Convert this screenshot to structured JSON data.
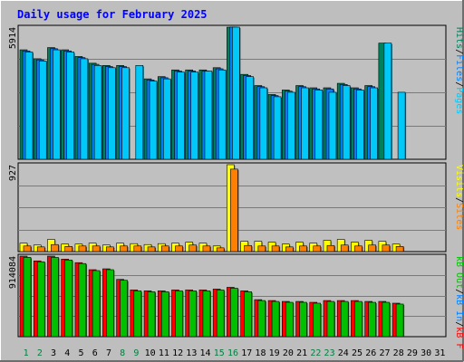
{
  "chart_data": [
    {
      "type": "bar",
      "title": "Daily usage for February 2025",
      "panel": "hits-files-pages",
      "max_label": "5914",
      "ylim": [
        0,
        5914
      ],
      "grid": true,
      "legend": {
        "placement": "right-vertical",
        "separator": "/",
        "entries": [
          {
            "label": "Pages",
            "color": "#00c8f8"
          },
          {
            "label": "Files",
            "color": "#0080ff"
          },
          {
            "label": "Hits",
            "color": "#00805c"
          }
        ]
      },
      "categories": [
        "1",
        "2",
        "3",
        "4",
        "5",
        "6",
        "7",
        "8",
        "9",
        "10",
        "11",
        "12",
        "13",
        "14",
        "15",
        "16",
        "17",
        "18",
        "19",
        "20",
        "21",
        "22",
        "23",
        "24",
        "25",
        "26",
        "27",
        "28",
        "29",
        "30",
        "31"
      ],
      "weekend_days": [
        "1",
        "2",
        "8",
        "9",
        "15",
        "16",
        "22",
        "23"
      ],
      "series": [
        {
          "name": "Hits",
          "color": "#00805c",
          "values": [
            4900,
            4500,
            5000,
            4900,
            4600,
            4300,
            4200,
            4200,
            null,
            3600,
            3700,
            4000,
            4000,
            4000,
            4100,
            5914,
            3800,
            3300,
            2900,
            3100,
            3300,
            3200,
            3200,
            3400,
            3200,
            3300,
            5200,
            null,
            null,
            null,
            null
          ]
        },
        {
          "name": "Files",
          "color": "#0080ff",
          "values": [
            4850,
            4450,
            4950,
            4850,
            4550,
            4250,
            4150,
            4150,
            null,
            3550,
            3650,
            3950,
            3950,
            3950,
            4050,
            5914,
            3750,
            3250,
            2850,
            3050,
            3250,
            3150,
            3150,
            3350,
            3150,
            3250,
            null,
            null,
            null,
            null,
            null
          ]
        },
        {
          "name": "Pages",
          "color": "#00c8f8",
          "values": [
            4800,
            4400,
            4900,
            4800,
            4500,
            4200,
            4100,
            4100,
            4200,
            3500,
            3600,
            3900,
            3900,
            3950,
            4000,
            5914,
            3700,
            3200,
            2800,
            3000,
            3200,
            3100,
            3000,
            3300,
            3100,
            3200,
            5200,
            3000,
            null,
            null,
            null
          ]
        }
      ]
    },
    {
      "type": "bar",
      "panel": "visits-sites",
      "max_label": "927",
      "ylim": [
        0,
        927
      ],
      "grid": true,
      "legend": {
        "placement": "right-vertical",
        "separator": "/",
        "entries": [
          {
            "label": "Sites",
            "color": "#ff8000"
          },
          {
            "label": "Visits",
            "color": "#ffff00"
          }
        ]
      },
      "series": [
        {
          "name": "Visits",
          "color": "#ffff00",
          "values": [
            90,
            70,
            130,
            80,
            80,
            90,
            70,
            90,
            85,
            75,
            85,
            90,
            100,
            90,
            60,
            927,
            110,
            110,
            100,
            80,
            100,
            90,
            120,
            130,
            100,
            120,
            110,
            80,
            null,
            null,
            null
          ]
        },
        {
          "name": "Sites",
          "color": "#ff8000",
          "values": [
            60,
            50,
            75,
            55,
            60,
            60,
            50,
            60,
            60,
            50,
            60,
            60,
            70,
            60,
            40,
            880,
            65,
            60,
            60,
            50,
            60,
            60,
            65,
            70,
            60,
            70,
            70,
            55,
            null,
            null,
            null
          ]
        }
      ]
    },
    {
      "type": "bar",
      "panel": "kbytes",
      "max_label": "914084",
      "ylim": [
        0,
        914084
      ],
      "grid": true,
      "legend": {
        "placement": "right-vertical",
        "separator": "/",
        "entries": [
          {
            "label": "kB F",
            "color": "#ff0000"
          },
          {
            "label": "kB In",
            "color": "#0080ff"
          },
          {
            "label": "kB Out",
            "color": "#00c000"
          }
        ]
      },
      "series": [
        {
          "name": "kB F",
          "color": "#ff0000",
          "values": [
            914084,
            860000,
            914084,
            880000,
            840000,
            760000,
            770000,
            650000,
            530000,
            520000,
            520000,
            530000,
            530000,
            530000,
            540000,
            560000,
            520000,
            420000,
            410000,
            400000,
            400000,
            390000,
            410000,
            410000,
            410000,
            400000,
            400000,
            380000,
            null,
            null,
            null
          ]
        },
        {
          "name": "kB Out",
          "color": "#00c000",
          "values": [
            900000,
            850000,
            900000,
            870000,
            830000,
            750000,
            760000,
            640000,
            520000,
            510000,
            510000,
            520000,
            520000,
            520000,
            530000,
            550000,
            510000,
            410000,
            400000,
            390000,
            390000,
            380000,
            400000,
            400000,
            400000,
            390000,
            390000,
            370000,
            null,
            null,
            null
          ]
        }
      ]
    }
  ]
}
